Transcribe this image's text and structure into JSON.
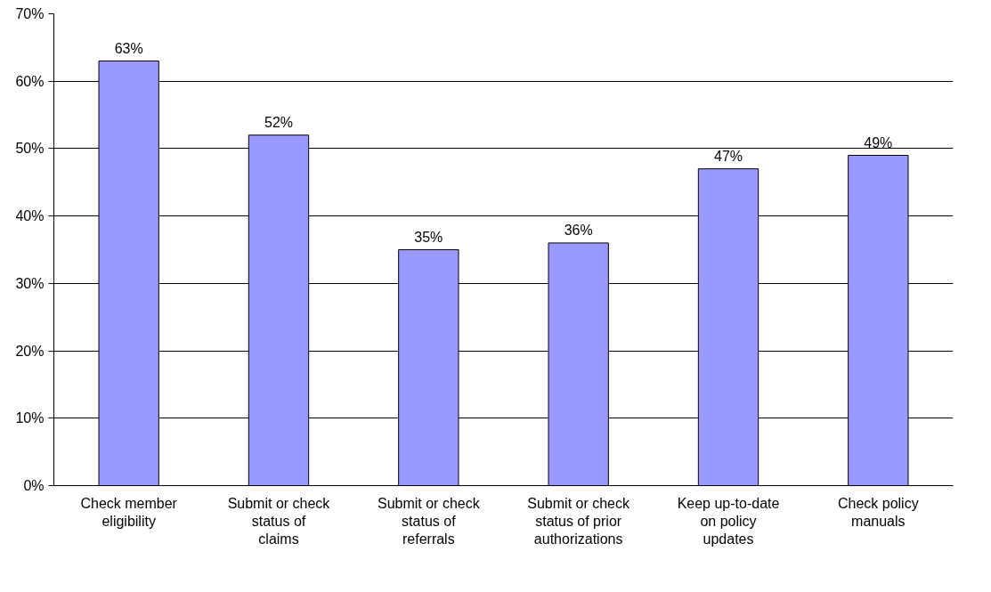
{
  "chart_data": {
    "type": "bar",
    "categories": [
      "Check member eligibility",
      "Submit or check status of claims",
      "Submit or check status of referrals",
      "Submit or check status of prior authorizations",
      "Keep up-to-date on policy updates",
      "Check policy manuals"
    ],
    "values": [
      63,
      52,
      35,
      36,
      47,
      49
    ],
    "value_labels": [
      "63%",
      "52%",
      "35%",
      "36%",
      "47%",
      "49%"
    ],
    "color": "#9999ff",
    "ylim": [
      0,
      70
    ],
    "yticks": [
      {
        "value": 0,
        "label": "0%"
      },
      {
        "value": 10,
        "label": "10%"
      },
      {
        "value": 20,
        "label": "20%"
      },
      {
        "value": 30,
        "label": "30%"
      },
      {
        "value": 40,
        "label": "40%"
      },
      {
        "value": 50,
        "label": "50%"
      },
      {
        "value": 60,
        "label": "60%"
      },
      {
        "value": 70,
        "label": "70%"
      }
    ],
    "grid": "y"
  }
}
